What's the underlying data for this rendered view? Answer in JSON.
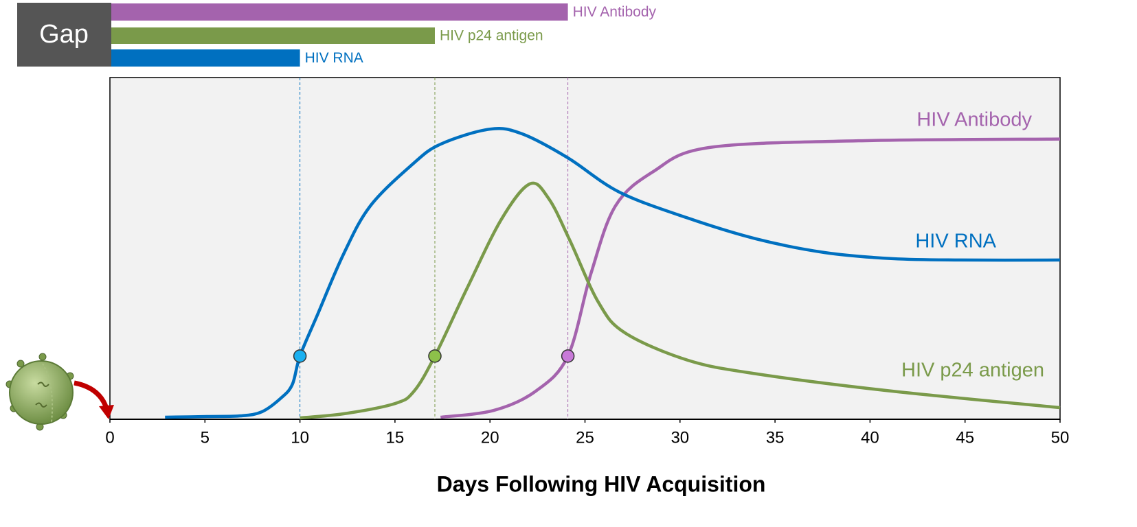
{
  "chart_data": {
    "type": "line",
    "gap_label": "Gap",
    "xlabel": "Days Following HIV Acquisition",
    "xlim": [
      0,
      50
    ],
    "xticks": [
      0,
      5,
      10,
      15,
      20,
      25,
      30,
      35,
      40,
      45,
      50
    ],
    "ylim": [
      0,
      100
    ],
    "series": [
      {
        "name": "HIV Antibody",
        "color": "#a463ad",
        "marker_color": "#c87ad8",
        "x": [
          17.4,
          20.2,
          22.4,
          24.1,
          25.3,
          26.6,
          28.6,
          31.5,
          39.4,
          50
        ],
        "values": [
          0.6,
          2.6,
          8.2,
          18.5,
          42.4,
          62.4,
          72.5,
          79.5,
          81.5,
          82
        ],
        "detection_x": 24.1,
        "detection_y": 18.5
      },
      {
        "name": "HIV p24 antigen",
        "color": "#7a9a4a",
        "marker_color": "#8dc04a",
        "x": [
          10,
          12.3,
          15,
          16,
          17.1,
          18.8,
          20.6,
          22.1,
          23.1,
          24.2,
          25.7,
          27.1,
          30.4,
          34,
          41.2,
          50
        ],
        "values": [
          0.4,
          1.6,
          4.6,
          8.2,
          18.5,
          38.4,
          58.5,
          68.9,
          64.5,
          52.4,
          34.3,
          25.3,
          17.3,
          13.3,
          8.2,
          3.4
        ],
        "detection_x": 17.1,
        "detection_y": 18.5
      },
      {
        "name": "HIV RNA",
        "color": "#0070c0",
        "marker_color": "#1ab0f0",
        "x": [
          2.9,
          5.1,
          6.9,
          8,
          9,
          9.6,
          10,
          10.9,
          12.3,
          13.7,
          15.9,
          17.4,
          20,
          21.7,
          24.1,
          26.8,
          30.4,
          34,
          37.6,
          41.2,
          44.8,
          50
        ],
        "values": [
          0.6,
          0.8,
          1,
          2.2,
          6.2,
          10.2,
          18.5,
          30.3,
          48.4,
          62.4,
          74.5,
          80.5,
          84.9,
          83.5,
          76.5,
          66.5,
          58.9,
          52.8,
          48.8,
          47,
          46.6,
          46.6
        ],
        "detection_x": 10,
        "detection_y": 18.5
      }
    ]
  }
}
